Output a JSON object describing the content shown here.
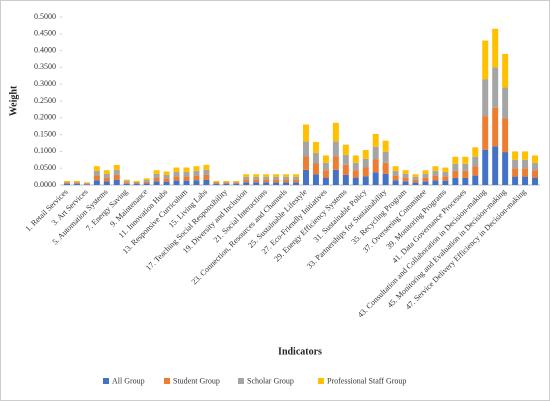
{
  "chart_data": {
    "type": "bar",
    "stacked": true,
    "y_label": "Weight",
    "x_label": "Indicators",
    "categories": [
      "1. Retail Services",
      null,
      "3. Art Services",
      null,
      "5. Automation Systems",
      null,
      "7. Energy Saving",
      null,
      "9. Maintenance",
      null,
      "11. Innovation Hubs",
      null,
      "13. Responsive Curriculum",
      null,
      "15. Living Labs",
      null,
      "17. Teaching Social Responsibility",
      null,
      "19. Diversity and Inclusion",
      null,
      "21. Social Interactions",
      null,
      "23. Connection, Resources and Channels",
      null,
      "25. Sustainable Lifestyle",
      null,
      "27. Eco-Friendly Initiatives",
      null,
      "29. Energy Efficiency Systems",
      null,
      "31. Sustainable Policy",
      null,
      "33. Partnerships for Sustainability",
      null,
      "35. Recycling Program",
      null,
      "37. Overseeing Committee",
      null,
      "39. Monitoring Programs",
      null,
      "41. Data Governance Processes",
      null,
      "43. Consultation and Collaboration in Decision-making",
      null,
      "45. Monitoring and Evaluation in Decision-making",
      null,
      "47. Service Delivery Efficiency in Decision-making",
      null
    ],
    "series": [
      {
        "name": "All Group",
        "color": "#4472c4",
        "values": [
          0.003,
          0.003,
          0.002,
          0.014,
          0.011,
          0.015,
          0.004,
          0.003,
          0.005,
          0.011,
          0.01,
          0.013,
          0.013,
          0.014,
          0.015,
          0.003,
          0.003,
          0.003,
          0.008,
          0.008,
          0.008,
          0.008,
          0.008,
          0.008,
          0.045,
          0.032,
          0.022,
          0.045,
          0.03,
          0.022,
          0.026,
          0.038,
          0.033,
          0.014,
          0.011,
          0.008,
          0.011,
          0.014,
          0.013,
          0.021,
          0.021,
          0.028,
          0.105,
          0.115,
          0.098,
          0.025,
          0.025,
          0.022
        ]
      },
      {
        "name": "Student Group",
        "color": "#ed7d31",
        "values": [
          0.003,
          0.003,
          0.002,
          0.014,
          0.011,
          0.015,
          0.004,
          0.003,
          0.005,
          0.011,
          0.01,
          0.013,
          0.013,
          0.014,
          0.015,
          0.003,
          0.003,
          0.003,
          0.008,
          0.008,
          0.008,
          0.008,
          0.008,
          0.008,
          0.04,
          0.032,
          0.022,
          0.04,
          0.03,
          0.022,
          0.026,
          0.038,
          0.033,
          0.014,
          0.011,
          0.008,
          0.011,
          0.014,
          0.013,
          0.021,
          0.021,
          0.028,
          0.1,
          0.115,
          0.1,
          0.025,
          0.025,
          0.022
        ]
      },
      {
        "name": "Scholar Group",
        "color": "#a5a5a5",
        "values": [
          0.003,
          0.003,
          0.002,
          0.014,
          0.011,
          0.015,
          0.004,
          0.003,
          0.005,
          0.011,
          0.01,
          0.013,
          0.013,
          0.014,
          0.015,
          0.003,
          0.003,
          0.003,
          0.008,
          0.008,
          0.008,
          0.008,
          0.008,
          0.008,
          0.045,
          0.032,
          0.022,
          0.045,
          0.03,
          0.022,
          0.026,
          0.038,
          0.033,
          0.014,
          0.011,
          0.008,
          0.011,
          0.014,
          0.013,
          0.021,
          0.021,
          0.028,
          0.11,
          0.12,
          0.092,
          0.025,
          0.025,
          0.022
        ]
      },
      {
        "name": "Professional Staff Group",
        "color": "#ffc000",
        "values": [
          0.003,
          0.003,
          0.002,
          0.014,
          0.011,
          0.015,
          0.004,
          0.003,
          0.005,
          0.011,
          0.01,
          0.013,
          0.013,
          0.014,
          0.015,
          0.003,
          0.003,
          0.003,
          0.008,
          0.008,
          0.008,
          0.008,
          0.008,
          0.008,
          0.05,
          0.032,
          0.022,
          0.055,
          0.03,
          0.022,
          0.026,
          0.038,
          0.033,
          0.014,
          0.011,
          0.008,
          0.011,
          0.014,
          0.013,
          0.021,
          0.021,
          0.028,
          0.115,
          0.115,
          0.1,
          0.025,
          0.025,
          0.022
        ]
      }
    ],
    "ylim": [
      0,
      0.5
    ],
    "yticks": [
      {
        "value": 0,
        "label": "0.0000"
      },
      {
        "value": 0.05,
        "label": "0.0500"
      },
      {
        "value": 0.1,
        "label": "0.1000"
      },
      {
        "value": 0.15,
        "label": "0.1500"
      },
      {
        "value": 0.2,
        "label": "0.2000"
      },
      {
        "value": 0.25,
        "label": "0.2500"
      },
      {
        "value": 0.3,
        "label": "0.3000"
      },
      {
        "value": 0.35,
        "label": "0.3500"
      },
      {
        "value": 0.4,
        "label": "0.4000"
      },
      {
        "value": 0.45,
        "label": "0.4500"
      },
      {
        "value": 0.5,
        "label": "0.5000"
      }
    ],
    "grid": false,
    "legend": "bottom"
  }
}
